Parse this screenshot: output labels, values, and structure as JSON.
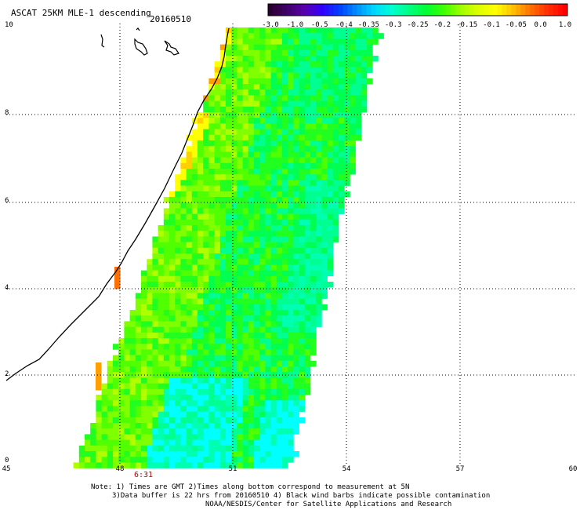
{
  "header": {
    "title": "ASCAT 25KM MLE-1 descending",
    "date": "20160510"
  },
  "colorbar": {
    "ticks": [
      "-3.0",
      "-1.0",
      "-0.5",
      "-0.4",
      "-0.35",
      "-0.3",
      "-0.25",
      "-0.2",
      "-0.15",
      "-0.1",
      "-0.05",
      "0.0",
      "1.0"
    ],
    "colors": [
      "#2a0030",
      "#4a0080",
      "#1000ff",
      "#0060ff",
      "#00b0ff",
      "#00ffff",
      "#00ff80",
      "#00ff00",
      "#80ff00",
      "#d0ff00",
      "#ffff00",
      "#ff8000",
      "#ff0000"
    ]
  },
  "map": {
    "y_axis_labels": [
      "10",
      "8",
      "6",
      "4",
      "2",
      "0"
    ],
    "x_axis_labels": [
      "45",
      "48",
      "51",
      "54",
      "57",
      "60"
    ],
    "time_label": "6:31"
  },
  "footer": {
    "line1": "Note: 1) Times are GMT 2)Times along bottom correspond to measurement at 5N",
    "line2": "3)Data buffer is 22 hrs from 20160510 4) Black wind barbs indicate possible contamination",
    "line3": "NOAA/NESDIS/Center for Satellite Applications and Research"
  }
}
